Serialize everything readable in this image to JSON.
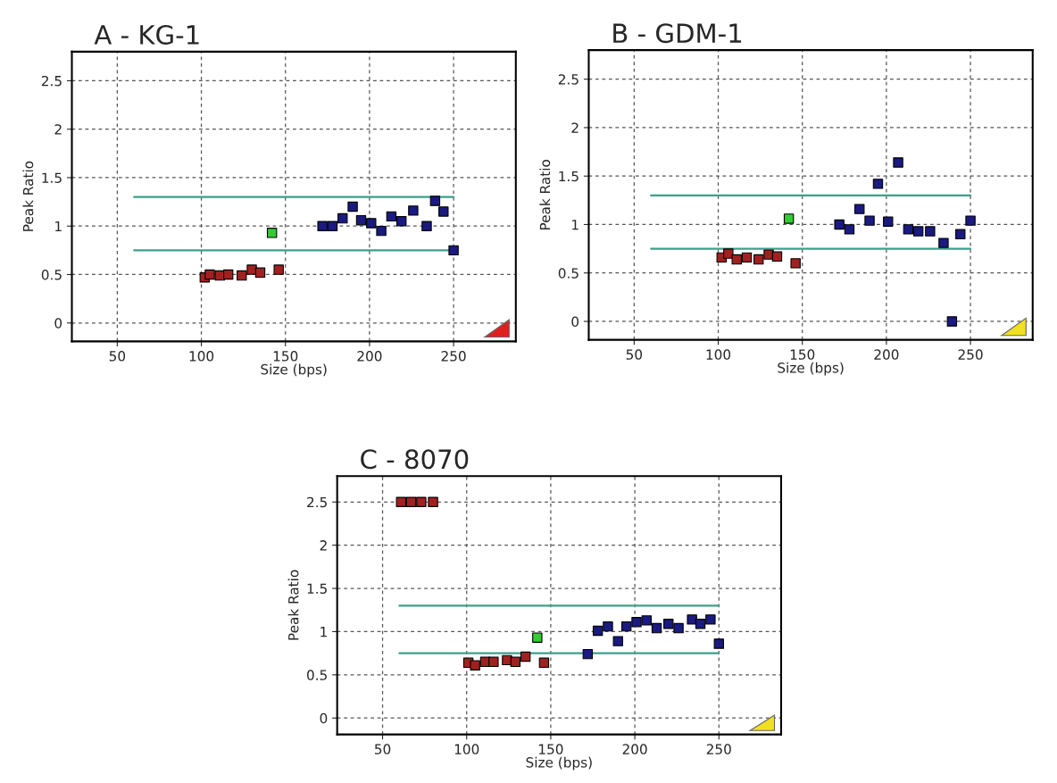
{
  "chart_data": [
    {
      "type": "scatter",
      "title": "A - KG-1",
      "xlabel": "Size (bps)",
      "ylabel": "Peak Ratio",
      "xlim": [
        23,
        287
      ],
      "ylim": [
        -0.19,
        2.8
      ],
      "xticks": [
        50,
        100,
        150,
        200,
        250
      ],
      "yticks": [
        0,
        0.5,
        1,
        1.5,
        2,
        2.5
      ],
      "grid": true,
      "marker": "square",
      "series": [
        {
          "color": "#a32020",
          "x": [
            102,
            105,
            111,
            116,
            124,
            130,
            135,
            146
          ],
          "values": [
            0.47,
            0.5,
            0.49,
            0.5,
            0.49,
            0.55,
            0.52,
            0.55
          ]
        },
        {
          "color": "#33cc33",
          "x": [
            142
          ],
          "values": [
            0.93
          ]
        },
        {
          "color": "#1a1a80",
          "x": [
            172,
            178,
            184,
            190,
            195,
            201,
            207,
            213,
            219,
            226,
            234,
            239,
            244,
            250
          ],
          "values": [
            1.0,
            1.0,
            1.08,
            1.2,
            1.06,
            1.03,
            0.95,
            1.1,
            1.05,
            1.16,
            1.0,
            1.26,
            1.15,
            0.75
          ]
        },
        {
          "type": "line",
          "marker": "none",
          "color": "#3f9f8a",
          "x": [
            60,
            250
          ],
          "values": [
            1.3,
            1.3
          ]
        },
        {
          "type": "line",
          "marker": "none",
          "color": "#3f9f8a",
          "x": [
            60,
            250
          ],
          "values": [
            0.75,
            0.75
          ]
        }
      ]
    },
    {
      "type": "scatter",
      "title": "B - GDM-1",
      "xlabel": "Size (bps)",
      "ylabel": "Peak Ratio",
      "xlim": [
        23,
        287
      ],
      "ylim": [
        -0.19,
        2.8
      ],
      "xticks": [
        50,
        100,
        150,
        200,
        250
      ],
      "yticks": [
        0,
        0.5,
        1,
        1.5,
        2,
        2.5
      ],
      "grid": true,
      "marker": "square",
      "series": [
        {
          "color": "#a32020",
          "x": [
            102,
            106,
            111,
            117,
            124,
            130,
            135,
            146
          ],
          "values": [
            0.66,
            0.7,
            0.64,
            0.66,
            0.64,
            0.69,
            0.67,
            0.6
          ]
        },
        {
          "color": "#33cc33",
          "x": [
            142
          ],
          "values": [
            1.06
          ]
        },
        {
          "color": "#1a1a80",
          "x": [
            172,
            178,
            184,
            190,
            195,
            201,
            207,
            213,
            219,
            226,
            234,
            239,
            244,
            250
          ],
          "values": [
            1.0,
            0.95,
            1.16,
            1.04,
            1.42,
            1.03,
            1.64,
            0.95,
            0.93,
            0.93,
            0.81,
            0.0,
            0.9,
            1.04
          ]
        },
        {
          "type": "line",
          "marker": "none",
          "color": "#3f9f8a",
          "x": [
            60,
            250
          ],
          "values": [
            1.3,
            1.3
          ]
        },
        {
          "type": "line",
          "marker": "none",
          "color": "#3f9f8a",
          "x": [
            60,
            250
          ],
          "values": [
            0.75,
            0.75
          ]
        }
      ]
    },
    {
      "type": "scatter",
      "title": "C - 8070",
      "xlabel": "Size (bps)",
      "ylabel": "Peak Ratio",
      "xlim": [
        23,
        287
      ],
      "ylim": [
        -0.19,
        2.8
      ],
      "xticks": [
        50,
        100,
        150,
        200,
        250
      ],
      "yticks": [
        0,
        0.5,
        1,
        1.5,
        2,
        2.5
      ],
      "grid": true,
      "marker": "square",
      "series": [
        {
          "color": "#a32020",
          "x": [
            61,
            67,
            73,
            80,
            101,
            105,
            111,
            116,
            124,
            129,
            135,
            146
          ],
          "values": [
            2.5,
            2.5,
            2.5,
            2.5,
            0.64,
            0.61,
            0.65,
            0.65,
            0.67,
            0.65,
            0.71,
            0.64
          ]
        },
        {
          "color": "#33cc33",
          "x": [
            142
          ],
          "values": [
            0.93
          ]
        },
        {
          "color": "#1a1a80",
          "x": [
            172,
            178,
            184,
            190,
            195,
            201,
            207,
            213,
            220,
            226,
            234,
            239,
            245,
            250
          ],
          "values": [
            0.74,
            1.01,
            1.06,
            0.89,
            1.06,
            1.11,
            1.13,
            1.04,
            1.09,
            1.04,
            1.14,
            1.09,
            1.14,
            0.86
          ]
        },
        {
          "type": "line",
          "marker": "none",
          "color": "#3f9f8a",
          "x": [
            60,
            250
          ],
          "values": [
            1.3,
            1.3
          ]
        },
        {
          "type": "line",
          "marker": "none",
          "color": "#3f9f8a",
          "x": [
            60,
            250
          ],
          "values": [
            0.75,
            0.75
          ]
        }
      ]
    }
  ]
}
